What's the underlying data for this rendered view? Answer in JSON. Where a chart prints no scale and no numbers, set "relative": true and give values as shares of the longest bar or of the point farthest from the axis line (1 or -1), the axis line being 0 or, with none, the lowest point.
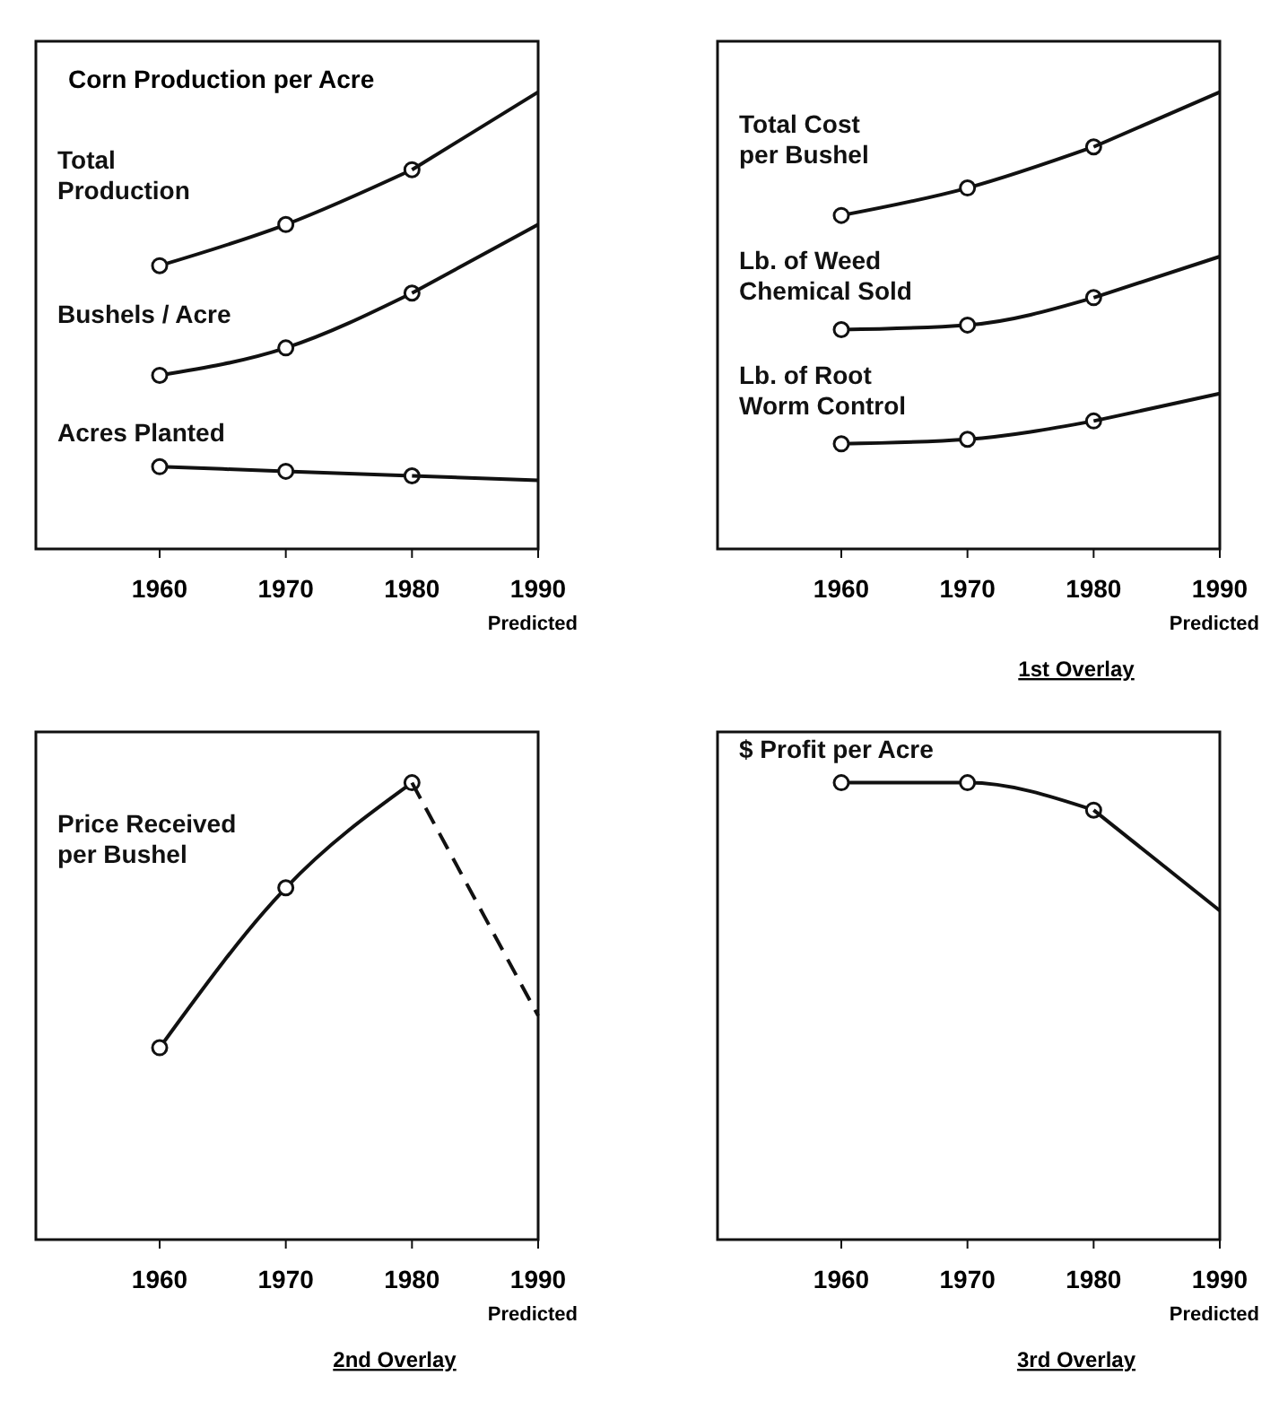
{
  "chart_data": [
    {
      "type": "line",
      "title": "Corn Production per Acre",
      "relative": true,
      "line_style": "solid",
      "categories": [
        "1960",
        "1970",
        "1980",
        "1990"
      ],
      "annotations": [
        "Predicted"
      ],
      "series": [
        {
          "name": "Total\nProduction",
          "color": "#111111",
          "marker": "circle",
          "values": [
            0.62,
            0.71,
            0.83,
            null
          ]
        },
        {
          "color": "#111111",
          "values": [
            null,
            null,
            0.83,
            1
          ]
        },
        {
          "name": "Bushels / Acre",
          "color": "#111111",
          "marker": "circle",
          "values": [
            0.38,
            0.44,
            0.56,
            null
          ]
        },
        {
          "color": "#111111",
          "values": [
            null,
            null,
            0.56,
            0.71
          ]
        },
        {
          "name": "Acres Planted",
          "color": "#111111",
          "marker": "circle",
          "values": [
            0.18,
            0.17,
            0.16,
            null
          ]
        },
        {
          "color": "#111111",
          "values": [
            null,
            null,
            0.16,
            0.15
          ]
        }
      ]
    },
    {
      "type": "line",
      "subtitle": "1st Overlay",
      "relative": true,
      "line_style": "solid",
      "categories": [
        "1960",
        "1970",
        "1980",
        "1990"
      ],
      "annotations": [
        "Predicted"
      ],
      "series": [
        {
          "name": "Total Cost\nper Bushel",
          "color": "#111111",
          "marker": "circle",
          "values": [
            0.73,
            0.79,
            0.88,
            null
          ]
        },
        {
          "color": "#111111",
          "values": [
            null,
            null,
            0.88,
            1
          ]
        },
        {
          "name": "Lb. of Weed\nChemical Sold",
          "color": "#111111",
          "marker": "circle",
          "values": [
            0.48,
            0.49,
            0.55,
            null
          ]
        },
        {
          "color": "#111111",
          "values": [
            null,
            null,
            0.55,
            0.64
          ]
        },
        {
          "name": "Lb. of Root\nWorm Control",
          "color": "#111111",
          "marker": "circle",
          "values": [
            0.23,
            0.24,
            0.28,
            null
          ]
        },
        {
          "color": "#111111",
          "values": [
            null,
            null,
            0.28,
            0.34
          ]
        }
      ]
    },
    {
      "type": "line",
      "subtitle": "2nd Overlay",
      "relative": true,
      "line_style": "solid",
      "categories": [
        "1960",
        "1970",
        "1980",
        "1990"
      ],
      "annotations": [
        "Predicted"
      ],
      "series": [
        {
          "name": "Price Received\nper Bushel",
          "color": "#111111",
          "marker": "circle",
          "values": [
            0.42,
            0.77,
            1,
            null
          ]
        },
        {
          "color": "#111111",
          "line_style": "dashed",
          "values": [
            null,
            null,
            1,
            0.49
          ]
        }
      ]
    },
    {
      "type": "line",
      "subtitle": "3rd Overlay",
      "relative": true,
      "line_style": "solid",
      "categories": [
        "1960",
        "1970",
        "1980",
        "1990"
      ],
      "annotations": [
        "Predicted"
      ],
      "series": [
        {
          "name": "$ Profit per Acre",
          "color": "#111111",
          "marker": "circle",
          "values": [
            1,
            1,
            0.94,
            null
          ]
        },
        {
          "color": "#111111",
          "values": [
            null,
            null,
            0.94,
            0.72
          ]
        }
      ]
    }
  ]
}
